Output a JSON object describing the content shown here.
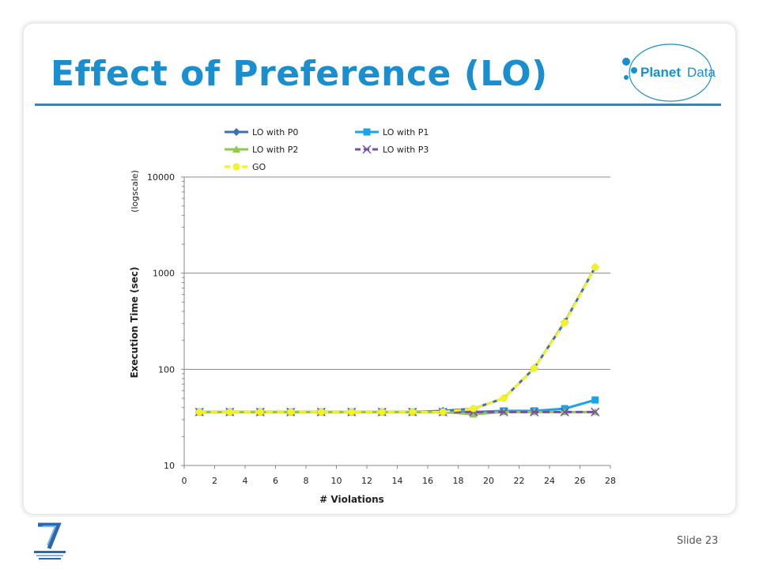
{
  "slide": {
    "title": "Effect of Preference (LO)",
    "footer_label": "Slide",
    "slide_number": "23",
    "logo_text_left": "Planet",
    "logo_text_right": "Data",
    "accent_color": "#1a8fd0"
  },
  "chart_data": {
    "type": "line",
    "xlabel": "# Violations",
    "ylabel": "Execution Time (sec)",
    "ylabel_note": "(logscale)",
    "y_scale": "log",
    "xlim": [
      0,
      28
    ],
    "ylim": [
      10,
      10000
    ],
    "x_ticks": [
      "0",
      "2",
      "4",
      "6",
      "8",
      "10",
      "12",
      "14",
      "16",
      "18",
      "20",
      "22",
      "24",
      "26",
      "28"
    ],
    "y_ticks": [
      "10",
      "100",
      "1000",
      "10000"
    ],
    "grid": "horizontal major",
    "legend_position": "top",
    "x": [
      1,
      3,
      5,
      7,
      9,
      11,
      13,
      15,
      17,
      19,
      21,
      23,
      25,
      27
    ],
    "series": [
      {
        "name": "LO with P0",
        "color": "#3f72b5",
        "marker": "diamond",
        "dash": "solid",
        "values": [
          36,
          36,
          36,
          36,
          36,
          36,
          36,
          36,
          37,
          39,
          50,
          103,
          310,
          1150
        ]
      },
      {
        "name": "LO with P1",
        "color": "#1aa3e6",
        "marker": "square",
        "dash": "solid",
        "values": [
          36,
          36,
          36,
          36,
          36,
          36,
          36,
          36,
          36,
          36,
          37,
          37,
          39,
          48
        ]
      },
      {
        "name": "LO with P2",
        "color": "#8fca4f",
        "marker": "triangle",
        "dash": "solid",
        "values": [
          36,
          36,
          36,
          36,
          36,
          36,
          36,
          36,
          36,
          34,
          36,
          36,
          36,
          36
        ]
      },
      {
        "name": "LO with P3",
        "color": "#7b4fa6",
        "marker": "x",
        "dash": "dashed",
        "values": [
          36,
          36,
          36,
          36,
          36,
          36,
          36,
          36,
          36,
          36,
          36,
          36,
          36,
          36
        ]
      },
      {
        "name": "GO",
        "color": "#f2f224",
        "marker": "circle",
        "dash": "dashed",
        "values": [
          36,
          36,
          36,
          36,
          36,
          36,
          36,
          36,
          36,
          39,
          50,
          103,
          305,
          1150
        ]
      }
    ]
  }
}
